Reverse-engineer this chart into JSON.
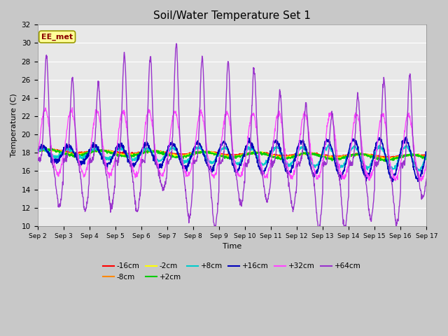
{
  "title": "Soil/Water Temperature Set 1",
  "xlabel": "Time",
  "ylabel": "Temperature (C)",
  "ylim": [
    10,
    32
  ],
  "xlim": [
    0,
    15
  ],
  "fig_bg": "#c8c8c8",
  "plot_bg": "#e8e8e8",
  "annotation": "EE_met",
  "series": {
    "-16cm": {
      "color": "#ff0000",
      "lw": 1.2,
      "zorder": 3
    },
    "-8cm": {
      "color": "#ff8800",
      "lw": 1.2,
      "zorder": 3
    },
    "-2cm": {
      "color": "#ffff00",
      "lw": 1.2,
      "zorder": 3
    },
    "+2cm": {
      "color": "#00cc00",
      "lw": 1.2,
      "zorder": 3
    },
    "+8cm": {
      "color": "#00cccc",
      "lw": 1.2,
      "zorder": 3
    },
    "+16cm": {
      "color": "#0000bb",
      "lw": 1.2,
      "zorder": 3
    },
    "+32cm": {
      "color": "#ff44ff",
      "lw": 1.0,
      "zorder": 4
    },
    "+64cm": {
      "color": "#9933cc",
      "lw": 1.0,
      "zorder": 5
    }
  },
  "xtick_labels": [
    "Sep 2",
    "Sep 3",
    "Sep 4",
    "Sep 5",
    "Sep 6",
    "Sep 7",
    "Sep 8",
    "Sep 9",
    "Sep 10",
    "Sep 11",
    "Sep 12",
    "Sep 13",
    "Sep 14",
    "Sep 15",
    "Sep 16",
    "Sep 17"
  ]
}
